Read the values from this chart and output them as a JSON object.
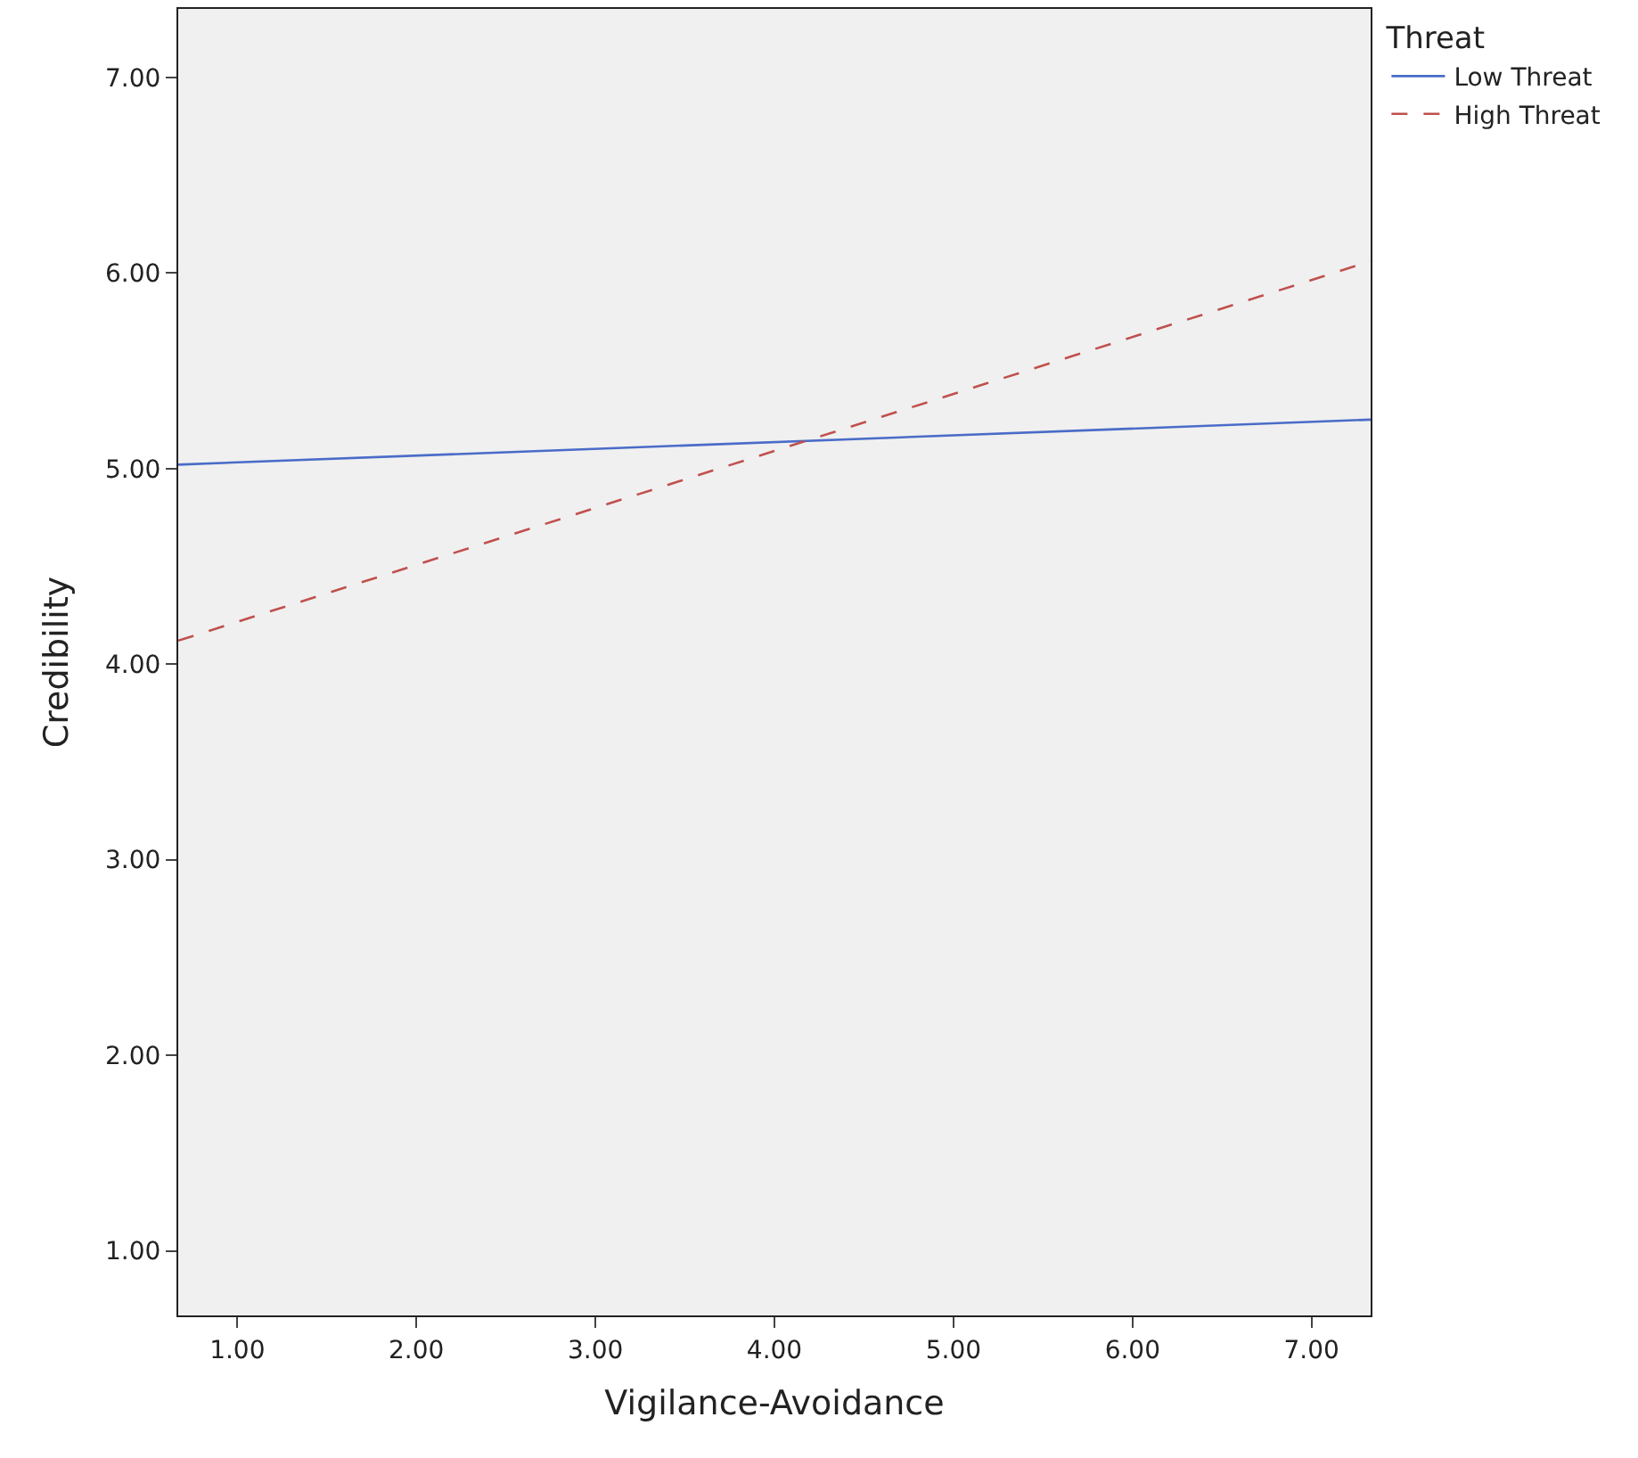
{
  "chart_data": {
    "type": "line",
    "xlabel": "Vigilance-Avoidance",
    "ylabel": "Credibility",
    "legend_title": "Threat",
    "x": [
      0.67,
      7.33
    ],
    "series": [
      {
        "name": "Low Threat",
        "color": "#4a6cc8",
        "values": [
          5.02,
          5.25
        ],
        "line_style": "solid"
      },
      {
        "name": "High Threat",
        "color": "#c0504d",
        "values": [
          4.12,
          6.06
        ],
        "line_style": "dashed"
      }
    ],
    "xlim": [
      0.67,
      7.33
    ],
    "ylim": [
      0.67,
      7.35
    ],
    "xticks": [
      {
        "value": 1,
        "label": "1.00"
      },
      {
        "value": 2,
        "label": "2.00"
      },
      {
        "value": 3,
        "label": "3.00"
      },
      {
        "value": 4,
        "label": "4.00"
      },
      {
        "value": 5,
        "label": "5.00"
      },
      {
        "value": 6,
        "label": "6.00"
      },
      {
        "value": 7,
        "label": "7.00"
      }
    ],
    "yticks": [
      {
        "value": 1,
        "label": "1.00"
      },
      {
        "value": 2,
        "label": "2.00"
      },
      {
        "value": 3,
        "label": "3.00"
      },
      {
        "value": 4,
        "label": "4.00"
      },
      {
        "value": 5,
        "label": "5.00"
      },
      {
        "value": 6,
        "label": "6.00"
      },
      {
        "value": 7,
        "label": "7.00"
      }
    ],
    "grid": false,
    "legend": "top right",
    "marker": "none"
  }
}
